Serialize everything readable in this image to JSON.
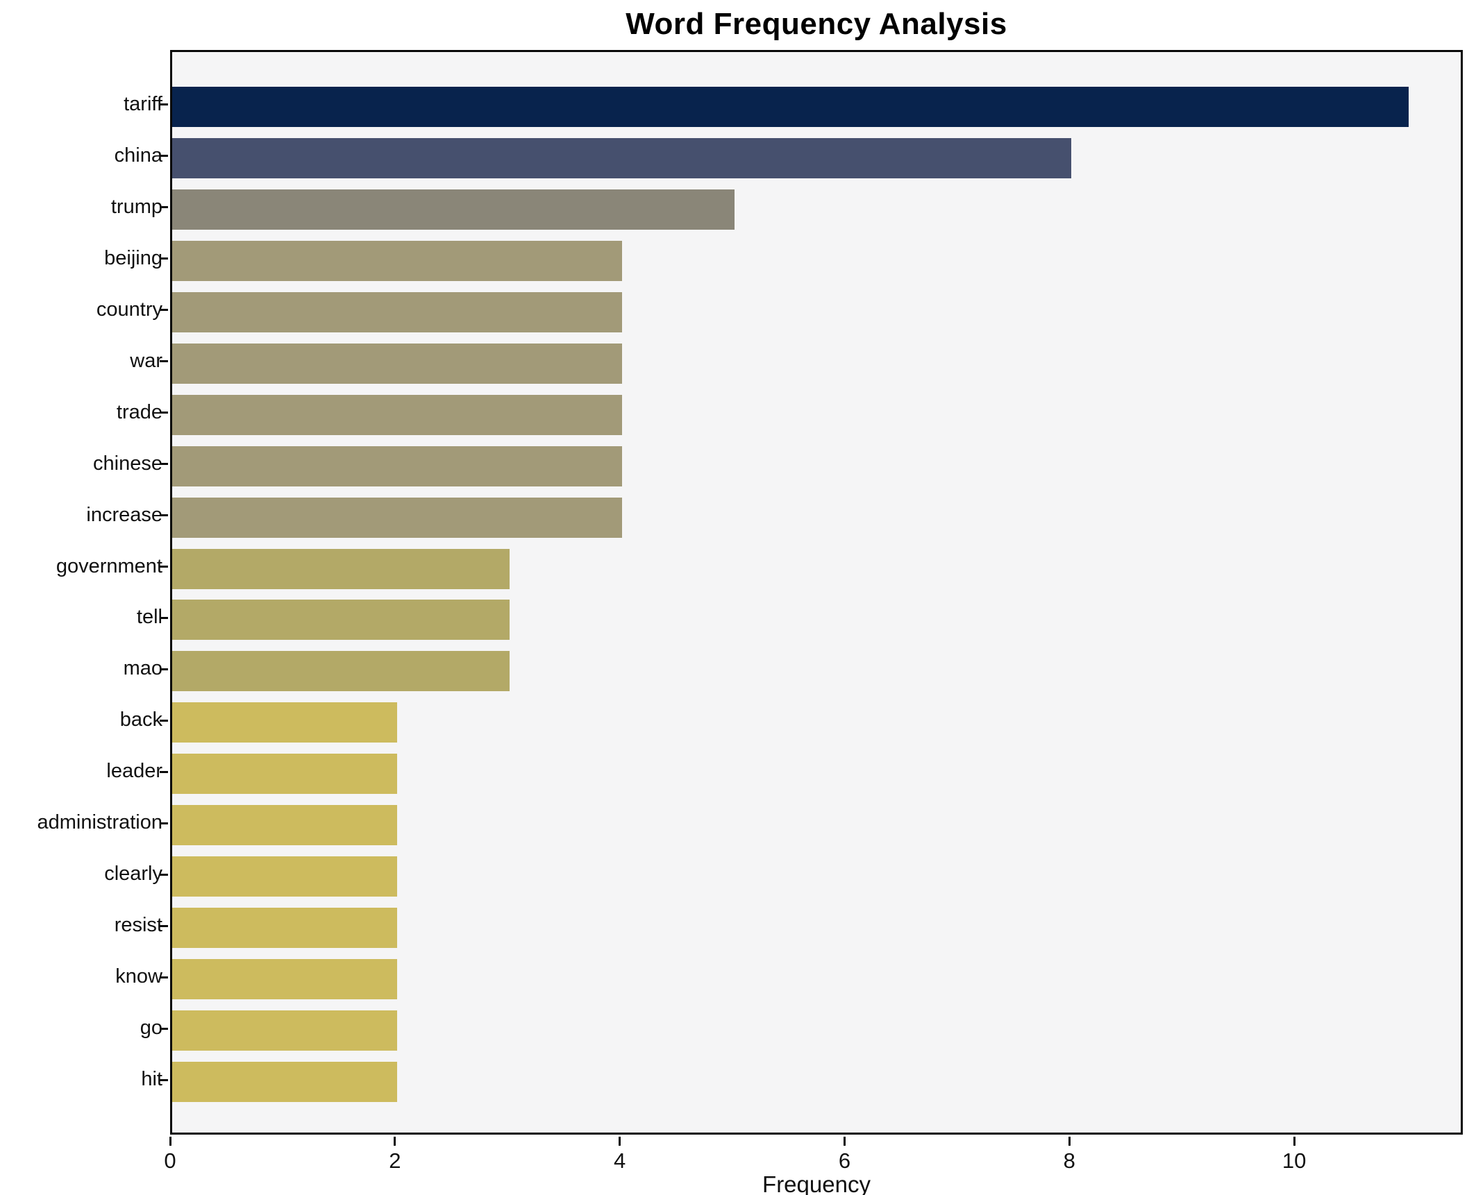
{
  "chart_data": {
    "type": "bar",
    "orientation": "horizontal",
    "title": "Word Frequency Analysis",
    "xlabel": "Frequency",
    "ylabel": "",
    "categories": [
      "tariff",
      "china",
      "trump",
      "beijing",
      "country",
      "war",
      "trade",
      "chinese",
      "increase",
      "government",
      "tell",
      "mao",
      "back",
      "leader",
      "administration",
      "clearly",
      "resist",
      "know",
      "go",
      "hit"
    ],
    "values": [
      11,
      8,
      5,
      4,
      4,
      4,
      4,
      4,
      4,
      3,
      3,
      3,
      2,
      2,
      2,
      2,
      2,
      2,
      2,
      2
    ],
    "bar_colors": [
      "#08234d",
      "#46506e",
      "#8a8678",
      "#a29a78",
      "#a29a78",
      "#a29a78",
      "#a29a78",
      "#a29a78",
      "#a29a78",
      "#b3a967",
      "#b3a967",
      "#b3a967",
      "#cdbb5e",
      "#cdbb5e",
      "#cdbb5e",
      "#cdbb5e",
      "#cdbb5e",
      "#cdbb5e",
      "#cdbb5e",
      "#cdbb5e"
    ],
    "xticks": [
      0,
      2,
      4,
      6,
      8,
      10
    ],
    "xlim": [
      0,
      11.5
    ],
    "grid": false,
    "legend": null,
    "plot_background": "#f5f5f6",
    "figure_background": "#ffffff",
    "spine_color": "#0a0a0a"
  }
}
